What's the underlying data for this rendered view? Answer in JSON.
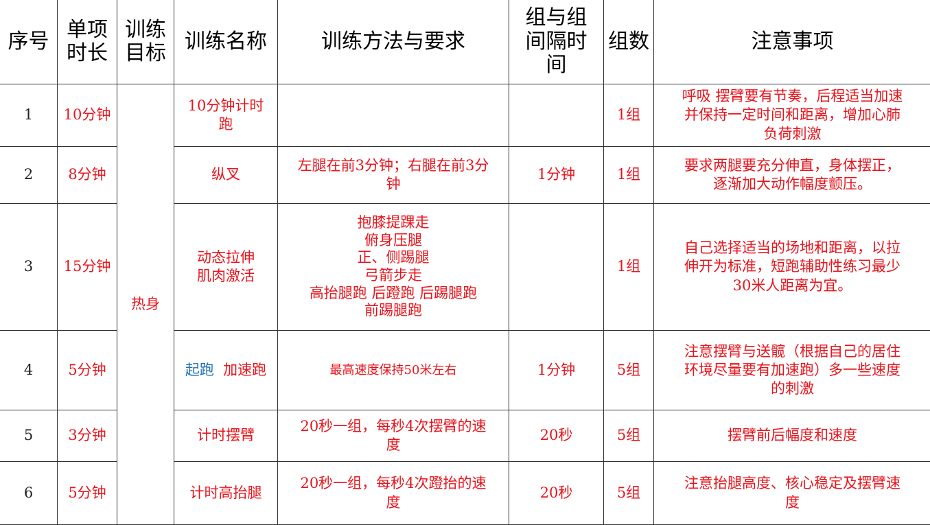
{
  "headers": [
    "序号",
    "单项\n时长",
    "训练\n目标",
    "训练名称",
    "训练方法与要求",
    "组与组\n间隔时\n间",
    "组数",
    "注意事项"
  ],
  "goal": "热身",
  "rows": [
    {
      "no": "1",
      "duration": "10分钟",
      "name": "10分钟计时\n跑",
      "method": "",
      "interval": "",
      "sets": "1组",
      "notes": "呼吸  摆臂要有节奏，后程适当加速\n并保持一定时间和距离，增加心肺\n负荷刺激"
    },
    {
      "no": "2",
      "duration": "8分钟",
      "name": "纵叉",
      "method": "左腿在前3分钟；右腿在前3分\n钟",
      "interval": "1分钟",
      "sets": "1组",
      "notes": "要求两腿要充分伸直，身体摆正，\n逐渐加大动作幅度颤压。"
    },
    {
      "no": "3",
      "duration": "15分钟",
      "name": "动态拉伸\n肌肉激活",
      "method": "抱膝提踝走\n俯身压腿\n正、侧踢腿\n弓箭步走\n高抬腿跑  后蹬跑  后踢腿跑\n前踢腿跑",
      "interval": "",
      "sets": "1组",
      "notes": "自己选择适当的场地和距离，以拉\n伸开为标准，短跑辅助性练习最少\n30米人距离为宜。"
    },
    {
      "no": "4",
      "duration": "5分钟",
      "name_blue": "起跑",
      "name": "  加速跑",
      "method": "最高速度保持50米左右",
      "interval": "1分钟",
      "sets": "5组",
      "notes": "注意摆臂与送髋（根据自己的居住\n环境尽量要有加速跑）多一些速度\n的刺激"
    },
    {
      "no": "5",
      "duration": "3分钟",
      "name": "计时摆臂",
      "method": "20秒一组，每秒4次摆臂的速\n度",
      "interval": "20秒",
      "sets": "5组",
      "notes": "摆臂前后幅度和速度"
    },
    {
      "no": "6",
      "duration": "5分钟",
      "name": "计时高抬腿",
      "method": "20秒一组，每秒4次蹬抬的速\n度",
      "interval": "20秒",
      "sets": "5组",
      "notes": "注意抬腿高度、核心稳定及摆臂速\n度"
    }
  ],
  "colors": {
    "text_red": "#e8141c",
    "text_blue": "#1f6fb5",
    "border": "#333333"
  }
}
